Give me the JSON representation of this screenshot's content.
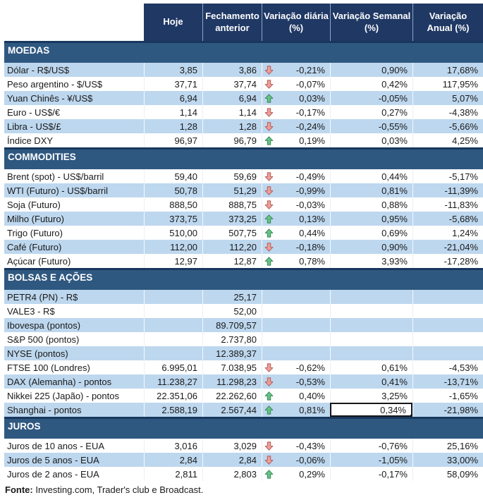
{
  "header": {
    "columns": [
      {
        "key": "hoje",
        "label": "Hoje"
      },
      {
        "key": "fechamento",
        "label": "Fechamento\nanterior"
      },
      {
        "key": "var_diaria",
        "label": "Variação diária\n(%)"
      },
      {
        "key": "var_semanal",
        "label": "Variação Semanal\n(%)"
      },
      {
        "key": "var_anual",
        "label": "Variação\nAnual (%)"
      }
    ]
  },
  "sections": [
    {
      "id": "moedas",
      "title": "MOEDAS",
      "first_striped": true,
      "rows": [
        {
          "label": "Dólar - R$/US$",
          "hoje": "3,85",
          "fechamento": "3,86",
          "arrow": "down",
          "var_diaria": "-0,21%",
          "var_semanal": "0,90%",
          "var_anual": "17,68%"
        },
        {
          "label": "Peso argentino - $/US$",
          "hoje": "37,71",
          "fechamento": "37,74",
          "arrow": "down",
          "var_diaria": "-0,07%",
          "var_semanal": "0,42%",
          "var_anual": "117,95%"
        },
        {
          "label": "Yuan Chinês - ¥/US$",
          "hoje": "6,94",
          "fechamento": "6,94",
          "arrow": "up",
          "var_diaria": "0,03%",
          "var_semanal": "-0,05%",
          "var_anual": "5,07%"
        },
        {
          "label": "Euro - US$/€",
          "hoje": "1,14",
          "fechamento": "1,14",
          "arrow": "down",
          "var_diaria": "-0,17%",
          "var_semanal": "0,27%",
          "var_anual": "-4,38%"
        },
        {
          "label": "Libra - US$/£",
          "hoje": "1,28",
          "fechamento": "1,28",
          "arrow": "down",
          "var_diaria": "-0,24%",
          "var_semanal": "-0,55%",
          "var_anual": "-5,66%"
        },
        {
          "label": "Índice DXY",
          "hoje": "96,97",
          "fechamento": "96,79",
          "arrow": "up",
          "var_diaria": "0,19%",
          "var_semanal": "0,03%",
          "var_anual": "4,25%"
        }
      ]
    },
    {
      "id": "commodities",
      "title": "COMMODITIES",
      "first_striped": false,
      "rows": [
        {
          "label": "Brent (spot) - US$/barril",
          "hoje": "59,40",
          "fechamento": "59,69",
          "arrow": "down",
          "var_diaria": "-0,49%",
          "var_semanal": "0,44%",
          "var_anual": "-5,17%"
        },
        {
          "label": "WTI (Futuro) - US$/barril",
          "hoje": "50,78",
          "fechamento": "51,29",
          "arrow": "down",
          "var_diaria": "-0,99%",
          "var_semanal": "0,81%",
          "var_anual": "-11,39%"
        },
        {
          "label": "Soja (Futuro)",
          "hoje": "888,50",
          "fechamento": "888,75",
          "arrow": "down",
          "var_diaria": "-0,03%",
          "var_semanal": "0,88%",
          "var_anual": "-11,83%"
        },
        {
          "label": "Milho (Futuro)",
          "hoje": "373,75",
          "fechamento": "373,25",
          "arrow": "up",
          "var_diaria": "0,13%",
          "var_semanal": "0,95%",
          "var_anual": "-5,68%"
        },
        {
          "label": "Trigo (Futuro)",
          "hoje": "510,00",
          "fechamento": "507,75",
          "arrow": "up",
          "var_diaria": "0,44%",
          "var_semanal": "0,69%",
          "var_anual": "1,24%"
        },
        {
          "label": "Café (Futuro)",
          "hoje": "112,00",
          "fechamento": "112,20",
          "arrow": "down",
          "var_diaria": "-0,18%",
          "var_semanal": "0,90%",
          "var_anual": "-21,04%"
        },
        {
          "label": "Açúcar (Futuro)",
          "hoje": "12,97",
          "fechamento": "12,87",
          "arrow": "up",
          "var_diaria": "0,78%",
          "var_semanal": "3,93%",
          "var_anual": "-17,28%"
        }
      ]
    },
    {
      "id": "bolsas-e-acoes",
      "title": "BOLSAS E AÇÕES",
      "first_striped": true,
      "rows": [
        {
          "label": "PETR4 (PN) - R$",
          "hoje": "",
          "fechamento": "25,17",
          "arrow": null,
          "var_diaria": "",
          "var_semanal": "",
          "var_anual": ""
        },
        {
          "label": "VALE3 - R$",
          "hoje": "",
          "fechamento": "52,00",
          "arrow": null,
          "var_diaria": "",
          "var_semanal": "",
          "var_anual": ""
        },
        {
          "label": "Ibovespa (pontos)",
          "hoje": "",
          "fechamento": "89.709,57",
          "arrow": null,
          "var_diaria": "",
          "var_semanal": "",
          "var_anual": ""
        },
        {
          "label": "S&P 500 (pontos)",
          "hoje": "",
          "fechamento": "2.737,80",
          "arrow": null,
          "var_diaria": "",
          "var_semanal": "",
          "var_anual": ""
        },
        {
          "label": "NYSE (pontos)",
          "hoje": "",
          "fechamento": "12.389,37",
          "arrow": null,
          "var_diaria": "",
          "var_semanal": "",
          "var_anual": ""
        },
        {
          "label": "FTSE 100 (Londres)",
          "hoje": "6.995,01",
          "fechamento": "7.038,95",
          "arrow": "down",
          "var_diaria": "-0,62%",
          "var_semanal": "0,61%",
          "var_anual": "-4,53%"
        },
        {
          "label": "DAX (Alemanha) - pontos",
          "hoje": "11.238,27",
          "fechamento": "11.298,23",
          "arrow": "down",
          "var_diaria": "-0,53%",
          "var_semanal": "0,41%",
          "var_anual": "-13,71%"
        },
        {
          "label": "Nikkei 225 (Japão) - pontos",
          "hoje": "22.351,06",
          "fechamento": "22.262,60",
          "arrow": "up",
          "var_diaria": "0,40%",
          "var_semanal": "3,25%",
          "var_anual": "-1,65%"
        },
        {
          "label": "Shanghai - pontos",
          "hoje": "2.588,19",
          "fechamento": "2.567,44",
          "arrow": "up",
          "var_diaria": "0,81%",
          "var_semanal": "0,34%",
          "var_anual": "-21,98%",
          "selected": "var_semanal"
        }
      ]
    },
    {
      "id": "juros",
      "title": "JUROS",
      "first_striped": false,
      "rows": [
        {
          "label": "Juros de 10 anos - EUA",
          "hoje": "3,016",
          "fechamento": "3,029",
          "arrow": "down",
          "var_diaria": "-0,43%",
          "var_semanal": "-0,76%",
          "var_anual": "25,16%"
        },
        {
          "label": "Juros de 5 anos - EUA",
          "hoje": "2,84",
          "fechamento": "2,84",
          "arrow": "down",
          "var_diaria": "-0,06%",
          "var_semanal": "-1,05%",
          "var_anual": "33,00%"
        },
        {
          "label": "Juros de 2 anos - EUA",
          "hoje": "2,811",
          "fechamento": "2,803",
          "arrow": "up",
          "var_diaria": "0,29%",
          "var_semanal": "-0,17%",
          "var_anual": "58,09%"
        }
      ]
    }
  ],
  "footer": {
    "label": "Fonte:",
    "text": " Investing.com, Trader's club e Broadcast."
  },
  "colors": {
    "header_bg": "#1F3864",
    "section_bg": "#2F5880",
    "section_top_border": "#17375E",
    "stripe_bg": "#BDD7EE",
    "selection_border": "#161616",
    "arrow_up_fill": "#63C384",
    "arrow_up_stroke": "#2F7D4B",
    "arrow_down_fill": "#ED9E9B",
    "arrow_down_stroke": "#A94D43"
  }
}
